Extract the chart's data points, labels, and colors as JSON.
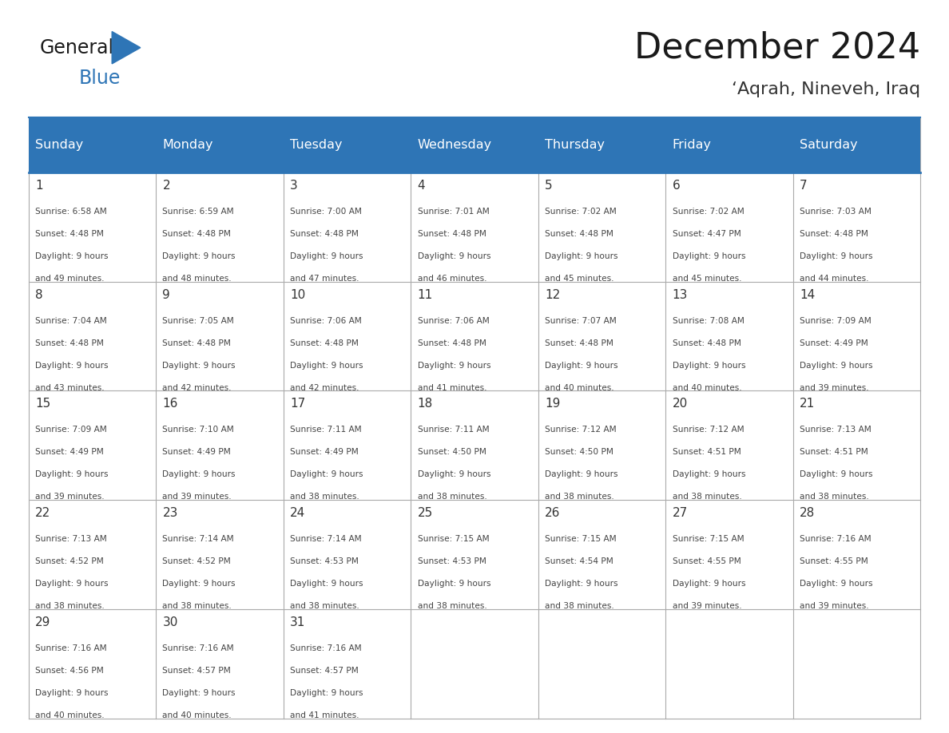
{
  "title": "December 2024",
  "subtitle": "‘Aqrah, Nineveh, Iraq",
  "header_bg": "#2E75B6",
  "header_text_color": "#FFFFFF",
  "cell_text_color": "#444444",
  "title_color": "#1a1a1a",
  "subtitle_color": "#333333",
  "days_of_week": [
    "Sunday",
    "Monday",
    "Tuesday",
    "Wednesday",
    "Thursday",
    "Friday",
    "Saturday"
  ],
  "weeks": [
    [
      {
        "day": 1,
        "sunrise": "6:58 AM",
        "sunset": "4:48 PM",
        "daylight_min": "49"
      },
      {
        "day": 2,
        "sunrise": "6:59 AM",
        "sunset": "4:48 PM",
        "daylight_min": "48"
      },
      {
        "day": 3,
        "sunrise": "7:00 AM",
        "sunset": "4:48 PM",
        "daylight_min": "47"
      },
      {
        "day": 4,
        "sunrise": "7:01 AM",
        "sunset": "4:48 PM",
        "daylight_min": "46"
      },
      {
        "day": 5,
        "sunrise": "7:02 AM",
        "sunset": "4:48 PM",
        "daylight_min": "45"
      },
      {
        "day": 6,
        "sunrise": "7:02 AM",
        "sunset": "4:47 PM",
        "daylight_min": "45"
      },
      {
        "day": 7,
        "sunrise": "7:03 AM",
        "sunset": "4:48 PM",
        "daylight_min": "44"
      }
    ],
    [
      {
        "day": 8,
        "sunrise": "7:04 AM",
        "sunset": "4:48 PM",
        "daylight_min": "43"
      },
      {
        "day": 9,
        "sunrise": "7:05 AM",
        "sunset": "4:48 PM",
        "daylight_min": "42"
      },
      {
        "day": 10,
        "sunrise": "7:06 AM",
        "sunset": "4:48 PM",
        "daylight_min": "42"
      },
      {
        "day": 11,
        "sunrise": "7:06 AM",
        "sunset": "4:48 PM",
        "daylight_min": "41"
      },
      {
        "day": 12,
        "sunrise": "7:07 AM",
        "sunset": "4:48 PM",
        "daylight_min": "40"
      },
      {
        "day": 13,
        "sunrise": "7:08 AM",
        "sunset": "4:48 PM",
        "daylight_min": "40"
      },
      {
        "day": 14,
        "sunrise": "7:09 AM",
        "sunset": "4:49 PM",
        "daylight_min": "39"
      }
    ],
    [
      {
        "day": 15,
        "sunrise": "7:09 AM",
        "sunset": "4:49 PM",
        "daylight_min": "39"
      },
      {
        "day": 16,
        "sunrise": "7:10 AM",
        "sunset": "4:49 PM",
        "daylight_min": "39"
      },
      {
        "day": 17,
        "sunrise": "7:11 AM",
        "sunset": "4:49 PM",
        "daylight_min": "38"
      },
      {
        "day": 18,
        "sunrise": "7:11 AM",
        "sunset": "4:50 PM",
        "daylight_min": "38"
      },
      {
        "day": 19,
        "sunrise": "7:12 AM",
        "sunset": "4:50 PM",
        "daylight_min": "38"
      },
      {
        "day": 20,
        "sunrise": "7:12 AM",
        "sunset": "4:51 PM",
        "daylight_min": "38"
      },
      {
        "day": 21,
        "sunrise": "7:13 AM",
        "sunset": "4:51 PM",
        "daylight_min": "38"
      }
    ],
    [
      {
        "day": 22,
        "sunrise": "7:13 AM",
        "sunset": "4:52 PM",
        "daylight_min": "38"
      },
      {
        "day": 23,
        "sunrise": "7:14 AM",
        "sunset": "4:52 PM",
        "daylight_min": "38"
      },
      {
        "day": 24,
        "sunrise": "7:14 AM",
        "sunset": "4:53 PM",
        "daylight_min": "38"
      },
      {
        "day": 25,
        "sunrise": "7:15 AM",
        "sunset": "4:53 PM",
        "daylight_min": "38"
      },
      {
        "day": 26,
        "sunrise": "7:15 AM",
        "sunset": "4:54 PM",
        "daylight_min": "38"
      },
      {
        "day": 27,
        "sunrise": "7:15 AM",
        "sunset": "4:55 PM",
        "daylight_min": "39"
      },
      {
        "day": 28,
        "sunrise": "7:16 AM",
        "sunset": "4:55 PM",
        "daylight_min": "39"
      }
    ],
    [
      {
        "day": 29,
        "sunrise": "7:16 AM",
        "sunset": "4:56 PM",
        "daylight_min": "40"
      },
      {
        "day": 30,
        "sunrise": "7:16 AM",
        "sunset": "4:57 PM",
        "daylight_min": "40"
      },
      {
        "day": 31,
        "sunrise": "7:16 AM",
        "sunset": "4:57 PM",
        "daylight_min": "41"
      },
      null,
      null,
      null,
      null
    ]
  ]
}
